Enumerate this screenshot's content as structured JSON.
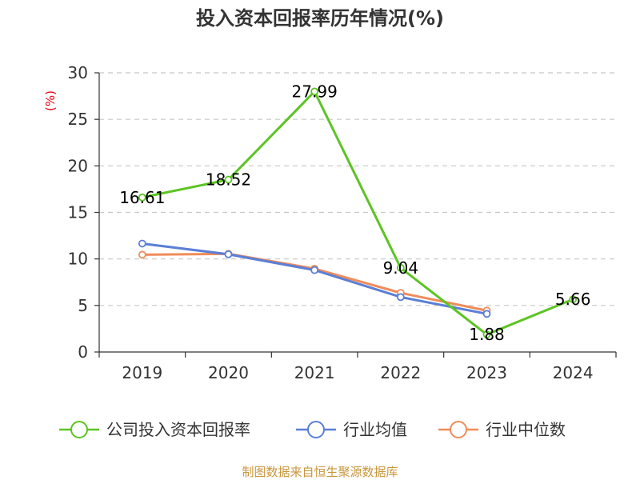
{
  "chart_data": {
    "type": "line",
    "title": "投入资本回报率历年情况(%)",
    "ylabel": "(%)",
    "xlabel": "",
    "categories": [
      "2019",
      "2020",
      "2021",
      "2022",
      "2023",
      "2024"
    ],
    "ylim": [
      0,
      30
    ],
    "yticks": [
      0,
      5,
      10,
      15,
      20,
      25,
      30
    ],
    "grid": true,
    "legend_position": "bottom",
    "series": [
      {
        "name": "公司投入资本回报率",
        "color": "#5cc424",
        "values": [
          16.61,
          18.52,
          27.99,
          9.04,
          1.88,
          5.66
        ],
        "labels": [
          "16.61",
          "18.52",
          "27.99",
          "9.04",
          "1.88",
          "5.66"
        ]
      },
      {
        "name": "行业均值",
        "color": "#5b7fd6",
        "values": [
          11.65,
          10.5,
          8.8,
          5.9,
          4.1,
          null
        ]
      },
      {
        "name": "行业中位数",
        "color": "#f08c5a",
        "values": [
          10.45,
          10.55,
          8.95,
          6.35,
          4.45,
          null
        ]
      }
    ],
    "source": "制图数据来自恒生聚源数据库"
  }
}
